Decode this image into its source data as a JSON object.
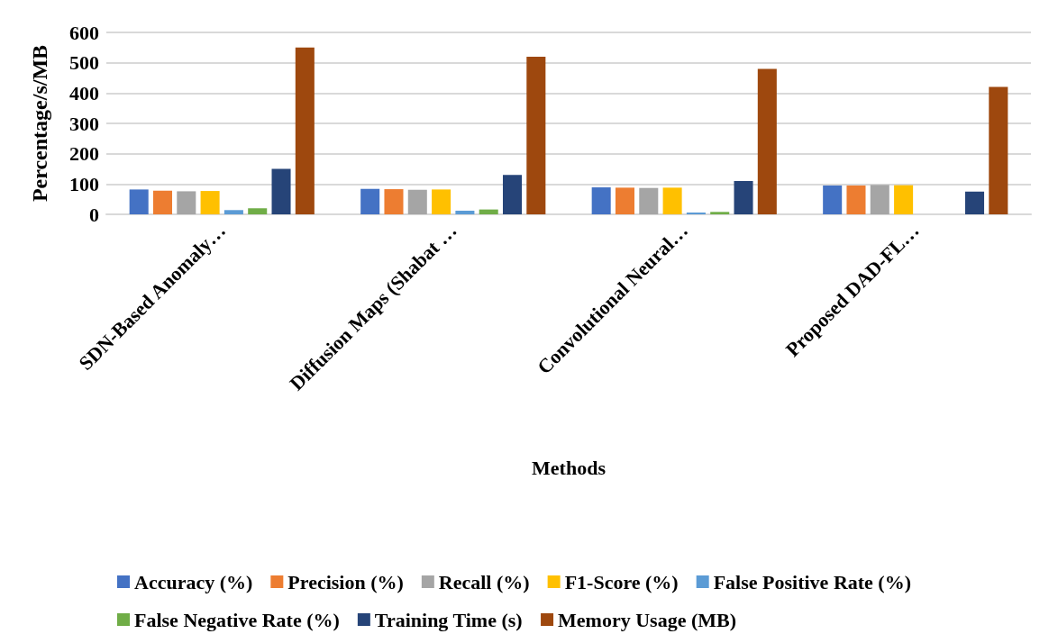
{
  "chart_data": {
    "type": "bar",
    "xlabel": "Methods",
    "ylabel": "Percentage/s/MB",
    "categories": [
      "SDN-Based Anomaly…",
      "Diffusion Maps (Shabat …",
      "Convolutional Neural…",
      "Proposed DAD-FL…"
    ],
    "series": [
      {
        "name": "Accuracy (%)",
        "color": "#4472c4",
        "values": [
          82,
          84,
          89,
          95
        ]
      },
      {
        "name": "Precision (%)",
        "color": "#ed7d31",
        "values": [
          78,
          83,
          88,
          95
        ]
      },
      {
        "name": "Recall (%)",
        "color": "#a5a5a5",
        "values": [
          76,
          81,
          87,
          97
        ]
      },
      {
        "name": "F1-Score (%)",
        "color": "#ffc000",
        "values": [
          77,
          82,
          88,
          96
        ]
      },
      {
        "name": "False Positive Rate (%)",
        "color": "#5b9bd5",
        "values": [
          14,
          12,
          6,
          null
        ]
      },
      {
        "name": "False Negative Rate (%)",
        "color": "#70ad47",
        "values": [
          20,
          16,
          8,
          null
        ]
      },
      {
        "name": "Training Time (s)",
        "color": "#264478",
        "values": [
          150,
          130,
          110,
          75
        ]
      },
      {
        "name": "Memory Usage (MB)",
        "color": "#9e480e",
        "values": [
          550,
          520,
          480,
          420
        ]
      }
    ],
    "ylim": [
      0,
      600
    ],
    "yticks": [
      0,
      100,
      200,
      300,
      400,
      500,
      600
    ],
    "grid": "y",
    "legend": "bottom"
  }
}
